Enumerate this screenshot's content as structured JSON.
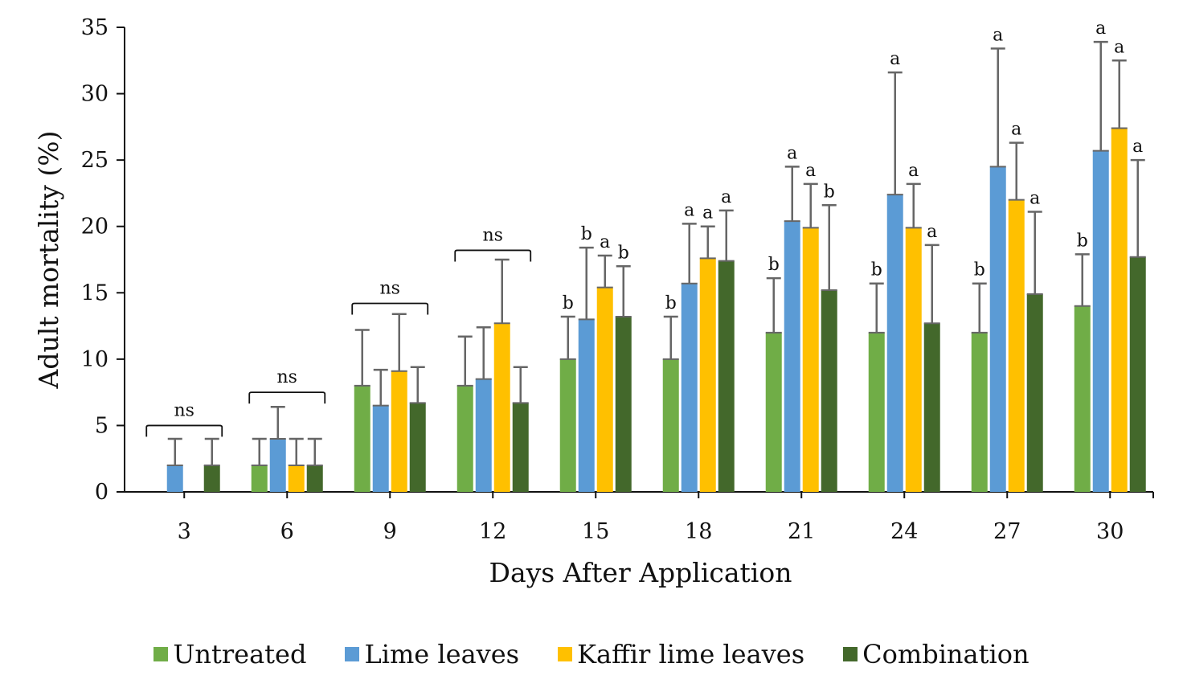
{
  "chart_data": {
    "type": "bar",
    "title": "",
    "xlabel": "Days After Application",
    "ylabel": "Adult mortality (%)",
    "ylim": [
      0,
      35
    ],
    "yticks": [
      0,
      5,
      10,
      15,
      20,
      25,
      30,
      35
    ],
    "grid": false,
    "legend_position": "bottom",
    "categories": [
      "3",
      "6",
      "9",
      "12",
      "15",
      "18",
      "21",
      "24",
      "27",
      "30"
    ],
    "series": [
      {
        "name": "Untreated",
        "color": "#70AD47",
        "values": [
          0,
          2,
          8,
          8,
          10,
          10,
          12,
          12,
          12,
          14
        ],
        "error_upper": [
          0,
          4,
          12.2,
          11.7,
          13.2,
          13.2,
          16.1,
          15.7,
          15.7,
          17.9
        ],
        "letters": [
          "",
          "",
          "",
          "",
          "b",
          "b",
          "b",
          "b",
          "b",
          "b"
        ]
      },
      {
        "name": "Lime leaves",
        "color": "#5B9BD5",
        "values": [
          2,
          4,
          6.5,
          8.5,
          13,
          15.7,
          20.4,
          22.4,
          24.5,
          25.7
        ],
        "error_upper": [
          4,
          6.4,
          9.2,
          12.4,
          18.4,
          20.2,
          24.5,
          31.6,
          33.4,
          33.9
        ],
        "letters": [
          "",
          "",
          "",
          "",
          "b",
          "a",
          "a",
          "a",
          "a",
          "a"
        ]
      },
      {
        "name": "Kaffir lime leaves",
        "color": "#FFC000",
        "values": [
          0,
          2,
          9.1,
          12.7,
          15.4,
          17.6,
          19.9,
          19.9,
          22.0,
          27.4
        ],
        "error_upper": [
          0,
          4,
          13.4,
          17.5,
          17.8,
          20.0,
          23.2,
          23.2,
          26.3,
          32.5
        ],
        "letters": [
          "",
          "",
          "",
          "",
          "a",
          "a",
          "a",
          "a",
          "a",
          "a"
        ]
      },
      {
        "name": "Combination",
        "color": "#43682B",
        "values": [
          2,
          2,
          6.7,
          6.7,
          13.2,
          17.4,
          15.2,
          12.7,
          14.9,
          17.7
        ],
        "error_upper": [
          4,
          4,
          9.4,
          9.4,
          17.0,
          21.2,
          21.6,
          18.6,
          21.1,
          25.0
        ],
        "letters": [
          "",
          "",
          "",
          "",
          "b",
          "a",
          "b",
          "a",
          "a",
          "a"
        ]
      }
    ],
    "group_annotations": [
      {
        "category": "3",
        "label": "ns",
        "bracket_at": 5
      },
      {
        "category": "6",
        "label": "ns",
        "bracket_at": 7.5
      },
      {
        "category": "9",
        "label": "ns",
        "bracket_at": 14.2
      },
      {
        "category": "12",
        "label": "ns",
        "bracket_at": 18.2
      }
    ]
  }
}
